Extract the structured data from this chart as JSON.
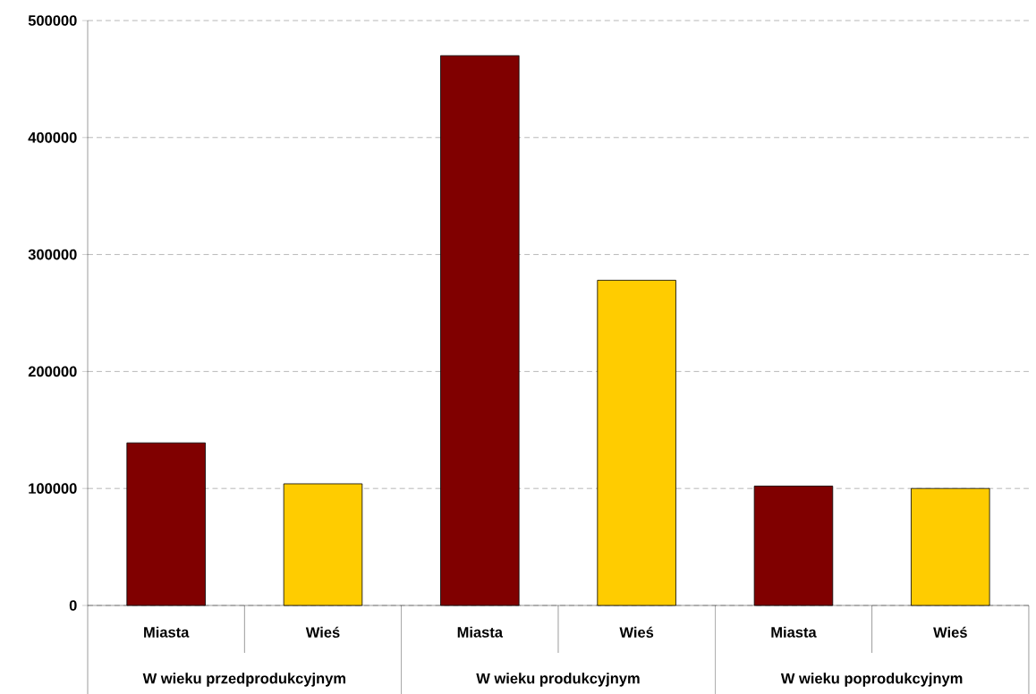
{
  "chart_data": {
    "type": "bar",
    "categories": [
      "Miasta",
      "Wieś",
      "Miasta",
      "Wieś",
      "Miasta",
      "Wieś"
    ],
    "values": [
      139000,
      104000,
      470000,
      278000,
      102000,
      100000
    ],
    "colors": [
      "#800000",
      "#ffcc00",
      "#800000",
      "#ffcc00",
      "#800000",
      "#ffcc00"
    ],
    "annotations": [
      "W wieku przedprodukcyjnym",
      "W wieku produkcyjnym",
      "W wieku poprodukcyjnym"
    ],
    "ylim": [
      0,
      500000
    ],
    "yticks": [
      0,
      100000,
      200000,
      300000,
      400000,
      500000
    ],
    "grid": "y"
  }
}
